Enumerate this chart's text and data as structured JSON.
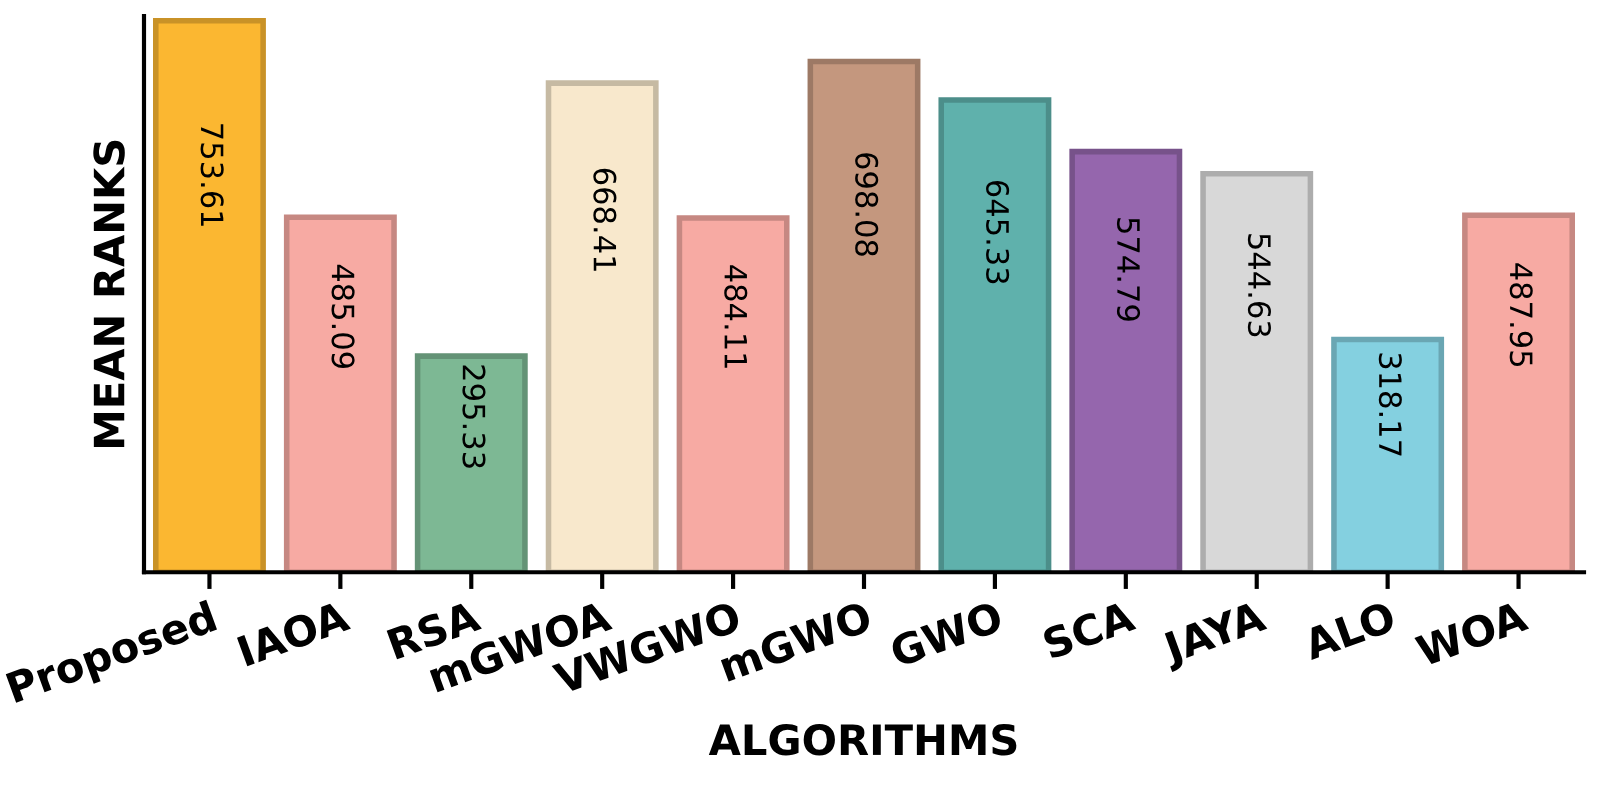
{
  "chart_data": {
    "type": "bar",
    "xlabel": "ALGORITHMS",
    "ylabel": "MEAN RANKS",
    "categories": [
      "Proposed",
      "IAOA",
      "RSA",
      "mGWOA",
      "VWGWO",
      "mGWO",
      "GWO",
      "SCA",
      "JAYA",
      "ALO",
      "WOA"
    ],
    "values": [
      753.61,
      485.09,
      295.33,
      668.41,
      484.11,
      698.08,
      645.33,
      574.79,
      544.63,
      318.17,
      487.95
    ],
    "colors": [
      "#fbb731",
      "#f7aaa3",
      "#7db894",
      "#f8e8cc",
      "#f7aaa3",
      "#c4977e",
      "#5fb1ac",
      "#9566ad",
      "#d8d8d8",
      "#84d0e0",
      "#f7aaa3"
    ],
    "data_labels": true,
    "ylim": [
      0,
      760
    ],
    "tick_labels": "x",
    "grid": false
  }
}
